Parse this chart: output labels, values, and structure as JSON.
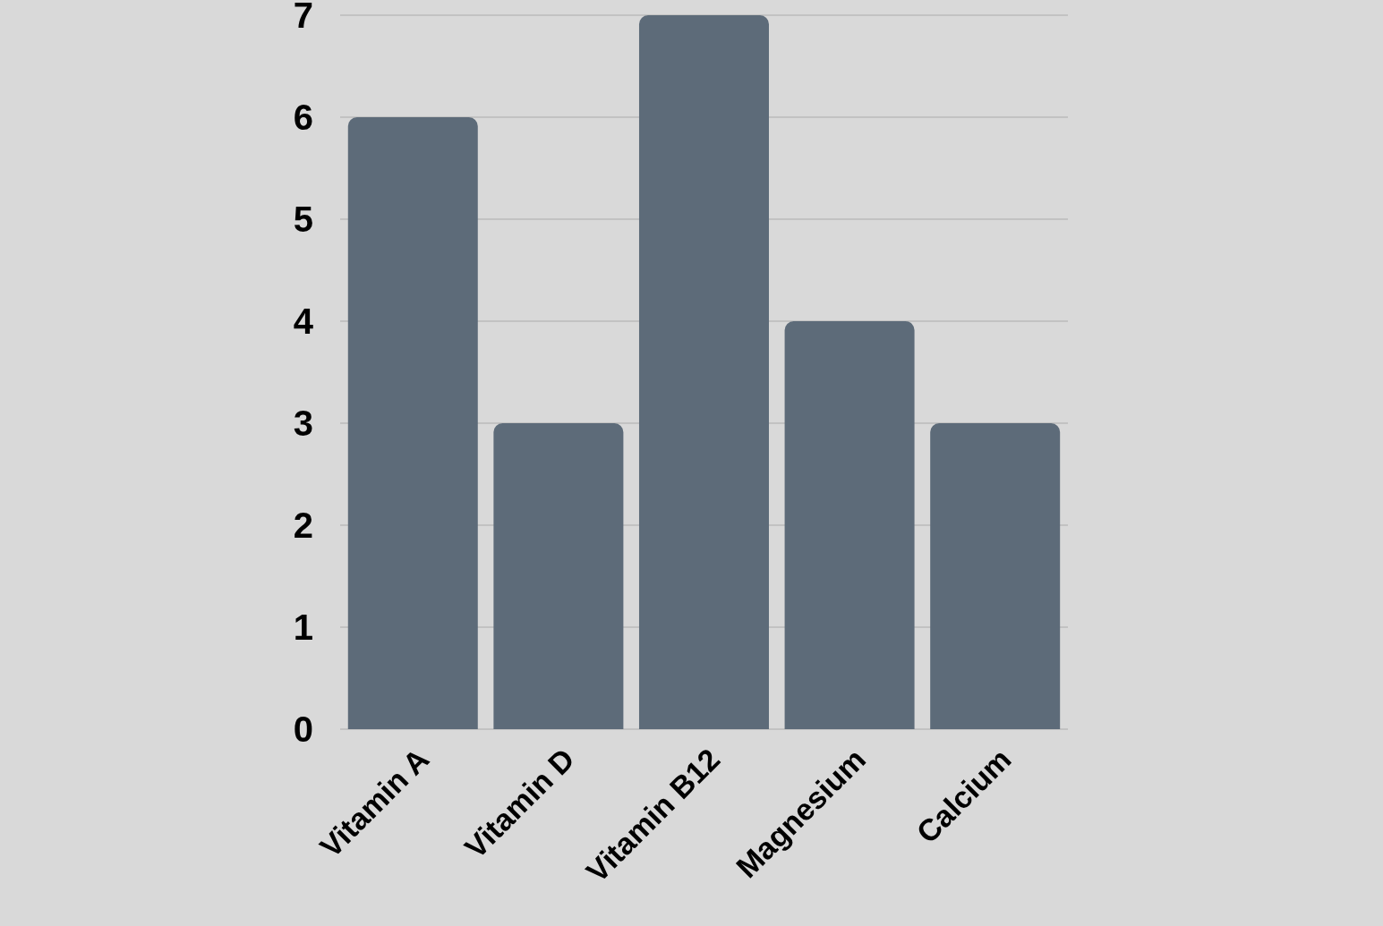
{
  "chart_data": {
    "type": "bar",
    "categories": [
      "Vitamin A",
      "Vitamin D",
      "Vitamin B12",
      "Magnesium",
      "Calcium"
    ],
    "values": [
      6,
      3,
      7,
      4,
      3
    ],
    "color": "#5d6b79",
    "ylim": [
      0,
      7
    ],
    "yticks": [
      0,
      1,
      2,
      3,
      4,
      5,
      6,
      7
    ],
    "grid": "y"
  }
}
